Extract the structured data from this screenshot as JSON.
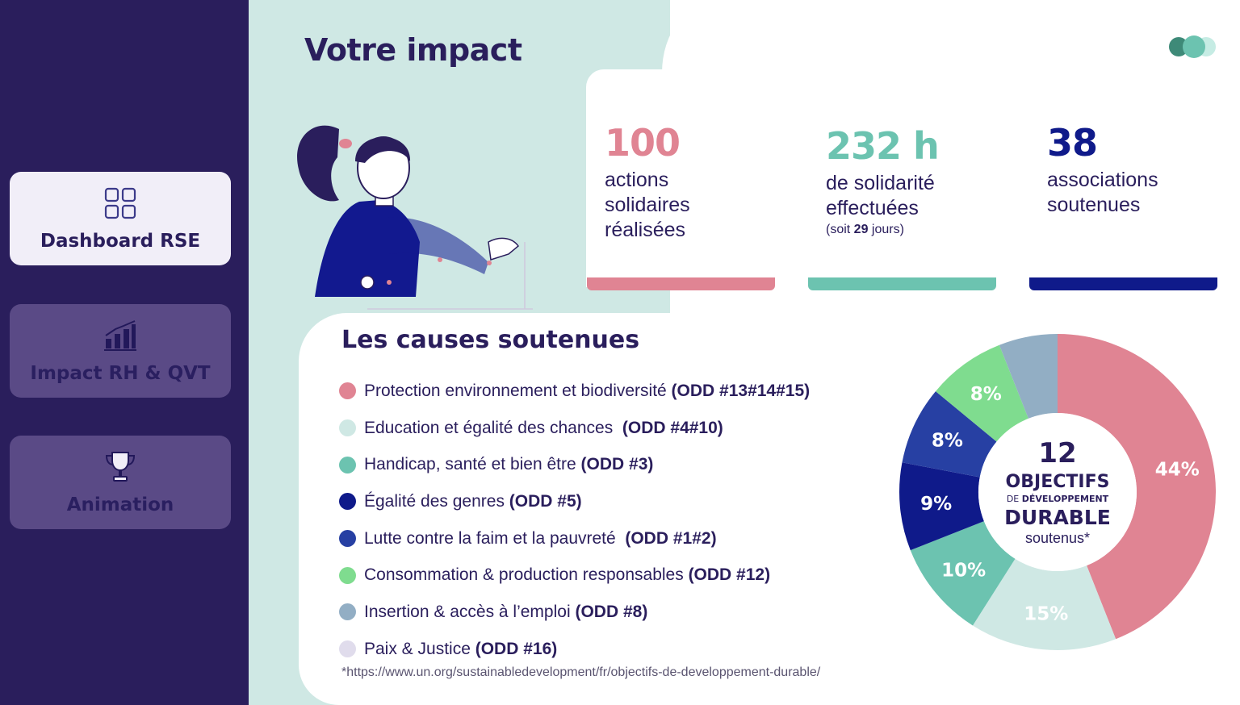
{
  "sidebar": {
    "items": [
      {
        "label": "Dashboard RSE",
        "icon": "grid-icon",
        "active": true
      },
      {
        "label": "Impact RH & QVT",
        "icon": "bar-chart-icon",
        "active": false
      },
      {
        "label": "Animation",
        "icon": "trophy-icon",
        "active": false
      }
    ]
  },
  "header": {
    "title": "Votre impact"
  },
  "stats": [
    {
      "value": "100",
      "color": "#e08493",
      "desc": "actions solidaires réalisées",
      "sub_prefix": "",
      "sub_bold": "",
      "sub_suffix": ""
    },
    {
      "value": "232 h",
      "color": "#6cc3b0",
      "desc": "de solidarité effectuées",
      "sub_prefix": "(soit ",
      "sub_bold": "29",
      "sub_suffix": " jours)"
    },
    {
      "value": "38",
      "color": "#0f1a8a",
      "desc": "associations soutenues",
      "sub_prefix": "",
      "sub_bold": "",
      "sub_suffix": ""
    }
  ],
  "causes": {
    "title": "Les causes soutenues",
    "items": [
      {
        "label": "Protection environnement et biodiversité ",
        "odd": "(ODD #13#14#15)",
        "color": "#e08493"
      },
      {
        "label": "Education et égalité des chances  ",
        "odd": "(ODD #4#10)",
        "color": "#cfe8e4"
      },
      {
        "label": "Handicap, santé et bien être ",
        "odd": "(ODD #3)",
        "color": "#6cc3b0"
      },
      {
        "label": "Égalité des genres ",
        "odd": "(ODD #5)",
        "color": "#0f1a8a"
      },
      {
        "label": "Lutte contre la faim et la pauvreté  ",
        "odd": "(ODD #1#2)",
        "color": "#2740a3"
      },
      {
        "label": "Consommation & production responsables ",
        "odd": "(ODD #12)",
        "color": "#7fdc8f"
      },
      {
        "label": "Insertion & accès à l’emploi ",
        "odd": "(ODD #8)",
        "color": "#92aec4"
      },
      {
        "label": "Paix & Justice ",
        "odd": "(ODD #16)",
        "color": "#e0dcec"
      }
    ],
    "footnote": "*https://www.un.org/sustainabledevelopment/fr/objectifs-de-developpement-durable/"
  },
  "chart_data": {
    "type": "pie",
    "categories": [
      "Protection environnement et biodiversité",
      "Education et égalité des chances",
      "Handicap, santé et bien être",
      "Égalité des genres",
      "Lutte contre la faim et la pauvreté",
      "Consommation & production responsables",
      "Insertion & accès à l’emploi"
    ],
    "values": [
      44,
      15,
      10,
      9,
      8,
      8,
      6
    ],
    "labels": [
      "44%",
      "15%",
      "10%",
      "9%",
      "8%",
      "8%",
      ""
    ],
    "colors": [
      "#e08493",
      "#cfe8e4",
      "#6cc3b0",
      "#0f1a8a",
      "#2740a3",
      "#7fdc8f",
      "#92aec4"
    ],
    "center": {
      "number": "12",
      "line1": "OBJECTIFS",
      "line2_prefix": "DE ",
      "line2_bold": "DÉVELOPPEMENT",
      "line3": "DURABLE",
      "line4": "soutenus*"
    }
  }
}
